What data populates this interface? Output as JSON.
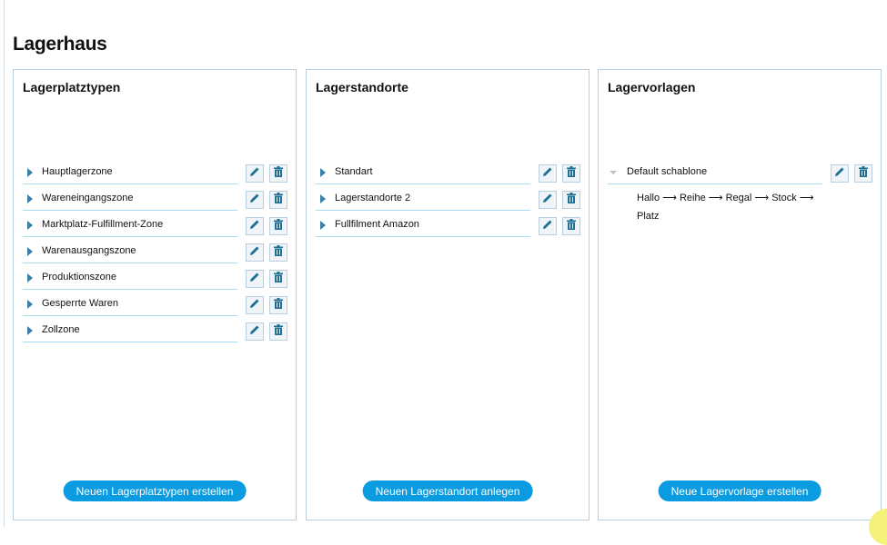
{
  "page": {
    "title": "Lagerhaus"
  },
  "panels": [
    {
      "title": "Lagerplatztypen",
      "items": [
        "Hauptlagerzone",
        "Wareneingangszone",
        "Marktplatz-Fulfillment-Zone",
        "Warenausgangszone",
        "Produktionszone",
        "Gesperrte Waren",
        "Zollzone"
      ],
      "button": "Neuen Lagerplatztypen erstellen"
    },
    {
      "title": "Lagerstandorte",
      "items": [
        "Standart",
        "Lagerstandorte 2",
        "Fullfilment Amazon"
      ],
      "button": "Neuen Lagerstandort anlegen"
    },
    {
      "title": "Lagervorlagen",
      "items": [
        "Default schablone"
      ],
      "template_path": "Hallo ⟶ Reihe ⟶ Regal ⟶ Stock ⟶ Platz",
      "button": "Neue Lagervorlage erstellen"
    }
  ],
  "icons": {
    "expand": "caret-right-icon",
    "expanded": "caret-down-icon",
    "edit": "pencil-icon",
    "delete": "trash-icon"
  },
  "colors": {
    "accent": "#0a9be0",
    "icon": "#1f6f94",
    "border": "#b9cfe0"
  }
}
